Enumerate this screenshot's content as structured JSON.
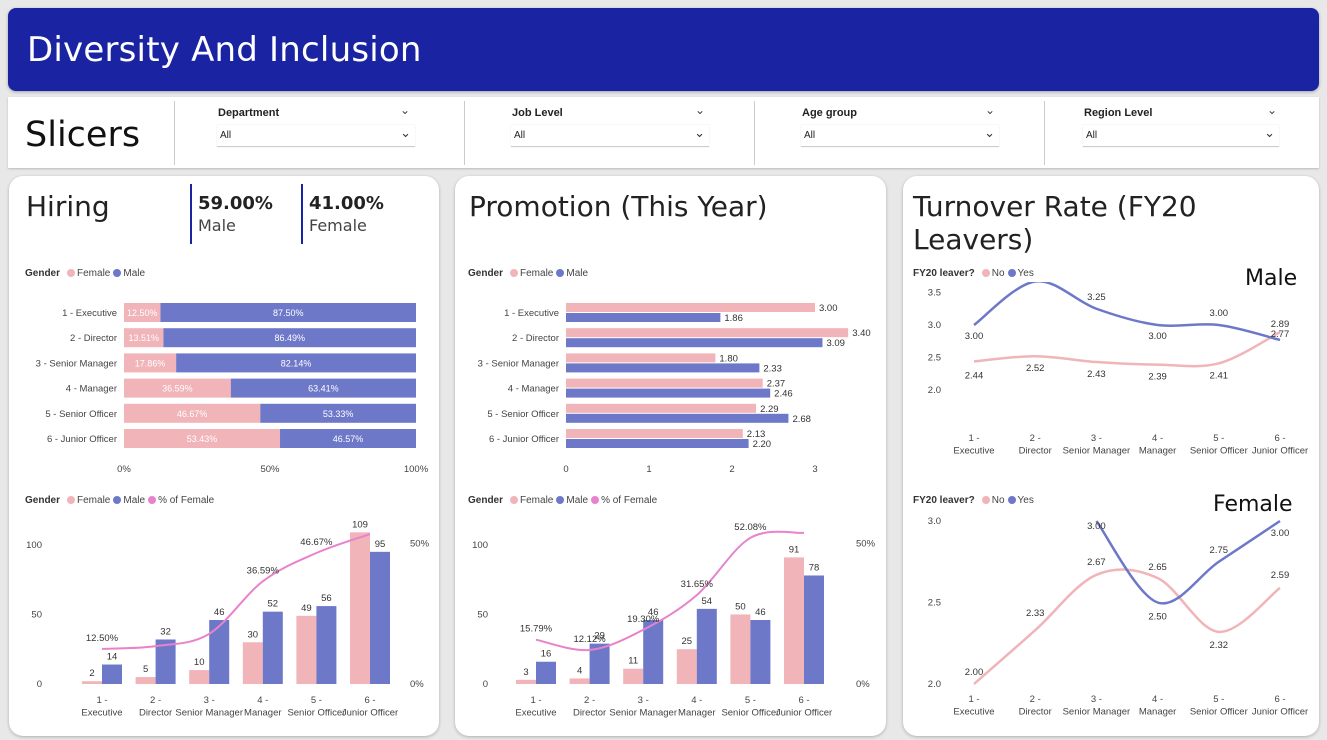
{
  "header": {
    "title": "Diversity And Inclusion"
  },
  "slicers": {
    "title": "Slicers",
    "items": [
      {
        "label": "Department",
        "value": "All"
      },
      {
        "label": "Job Level",
        "value": "All"
      },
      {
        "label": "Age group",
        "value": "All"
      },
      {
        "label": "Region Level",
        "value": "All"
      }
    ]
  },
  "hiring": {
    "title": "Hiring",
    "kpi_male_value": "59.00%",
    "kpi_male_label": "Male",
    "kpi_female_value": "41.00%",
    "kpi_female_label": "Female",
    "legend_title": "Gender",
    "legend_female": "Female",
    "legend_male": "Male",
    "legend_pct": "% of Female"
  },
  "promotion": {
    "title": "Promotion (This Year)",
    "legend_title": "Gender",
    "legend_female": "Female",
    "legend_male": "Male",
    "legend_pct": "% of Female"
  },
  "turnover": {
    "title": "Turnover Rate (FY20 Leavers)",
    "legend_title": "FY20 leaver?",
    "legend_no": "No",
    "legend_yes": "Yes",
    "male_title": "Male",
    "female_title": "Female"
  },
  "colors": {
    "female": "#f0b4b9",
    "male": "#6e78c8",
    "pct": "#e882cc",
    "header": "#1a24a3"
  },
  "chart_data": [
    {
      "id": "hiring-stacked",
      "type": "bar",
      "categories": [
        "1 - Executive",
        "2 - Director",
        "3 - Senior Manager",
        "4 - Manager",
        "5 - Senior Officer",
        "6 - Junior Officer"
      ],
      "series": [
        {
          "name": "Female",
          "values": [
            12.5,
            13.51,
            17.86,
            36.59,
            46.67,
            53.43
          ]
        },
        {
          "name": "Male",
          "values": [
            87.5,
            86.49,
            82.14,
            63.41,
            53.33,
            46.57
          ]
        }
      ],
      "xticks": [
        "0%",
        "50%",
        "100%"
      ],
      "xlim": [
        0,
        100
      ]
    },
    {
      "id": "hiring-combo",
      "type": "bar",
      "categories": [
        "1 - Executive",
        "2 - Director",
        "3 - Senior Manager",
        "4 - Manager",
        "5 - Senior Officer",
        "6 - Junior Officer"
      ],
      "series": [
        {
          "name": "Female",
          "values": [
            2,
            5,
            10,
            30,
            49,
            109
          ]
        },
        {
          "name": "Male",
          "values": [
            14,
            32,
            46,
            52,
            56,
            95
          ]
        },
        {
          "name": "% of Female",
          "values": [
            12.5,
            13.51,
            17.86,
            36.59,
            46.67,
            53.43
          ]
        }
      ],
      "pct_labels": [
        "12.50%",
        "",
        "",
        "36.59%",
        "46.67%",
        ""
      ],
      "yticks": [
        "0",
        "50",
        "100"
      ],
      "ylim": [
        0,
        115
      ],
      "y2ticks": [
        "0%",
        "50%"
      ],
      "y2lim": [
        0,
        57
      ]
    },
    {
      "id": "promotion-grouped",
      "type": "bar",
      "categories": [
        "1 - Executive",
        "2 - Director",
        "3 - Senior Manager",
        "4 - Manager",
        "5 - Senior Officer",
        "6 - Junior Officer"
      ],
      "series": [
        {
          "name": "Female",
          "values": [
            3.0,
            3.4,
            1.8,
            2.37,
            2.29,
            2.13
          ]
        },
        {
          "name": "Male",
          "values": [
            1.86,
            3.09,
            2.33,
            2.46,
            2.68,
            2.2
          ]
        }
      ],
      "xticks": [
        "0",
        "1",
        "2",
        "3"
      ],
      "xlim": [
        0,
        3.4
      ]
    },
    {
      "id": "promotion-combo",
      "type": "bar",
      "categories": [
        "1 - Executive",
        "2 - Director",
        "3 - Senior Manager",
        "4 - Manager",
        "5 - Senior Officer",
        "6 - Junior Officer"
      ],
      "series": [
        {
          "name": "Female",
          "values": [
            3,
            4,
            11,
            25,
            50,
            91
          ]
        },
        {
          "name": "Male",
          "values": [
            16,
            29,
            46,
            54,
            46,
            78
          ]
        },
        {
          "name": "% of Female",
          "values": [
            15.79,
            12.12,
            19.3,
            31.65,
            52.08,
            53.85
          ]
        }
      ],
      "pct_labels": [
        "15.79%",
        "12.12%",
        "19.30%",
        "31.65%",
        "52.08%",
        ""
      ],
      "yticks": [
        "0",
        "50",
        "100"
      ],
      "ylim": [
        0,
        115
      ],
      "y2ticks": [
        "0%",
        "50%"
      ],
      "y2lim": [
        0,
        57
      ]
    },
    {
      "id": "turnover-male",
      "type": "line",
      "categories": [
        "1 - Executive",
        "2 - Director",
        "3 - Senior Manager",
        "4 - Manager",
        "5 - Senior Officer",
        "6 - Junior Officer"
      ],
      "series": [
        {
          "name": "No",
          "values": [
            2.44,
            2.52,
            2.43,
            2.39,
            2.41,
            2.89
          ]
        },
        {
          "name": "Yes",
          "values": [
            3.0,
            3.67,
            3.25,
            3.0,
            3.0,
            2.77
          ]
        }
      ],
      "yticks": [
        "2.0",
        "2.5",
        "3.0",
        "3.5",
        "4.0"
      ],
      "ylim": [
        2.0,
        4.0
      ]
    },
    {
      "id": "turnover-female",
      "type": "line",
      "categories": [
        "1 - Executive",
        "2 - Director",
        "3 - Senior Manager",
        "4 - Manager",
        "5 - Senior Officer",
        "6 - Junior Officer"
      ],
      "series": [
        {
          "name": "No",
          "values": [
            2.0,
            2.33,
            2.67,
            2.65,
            2.32,
            2.59
          ]
        },
        {
          "name": "Yes",
          "values": [
            null,
            null,
            3.0,
            2.5,
            2.75,
            3.0
          ]
        }
      ],
      "yticks": [
        "2.0",
        "2.5",
        "3.0"
      ],
      "ylim": [
        2.0,
        3.0
      ]
    }
  ]
}
